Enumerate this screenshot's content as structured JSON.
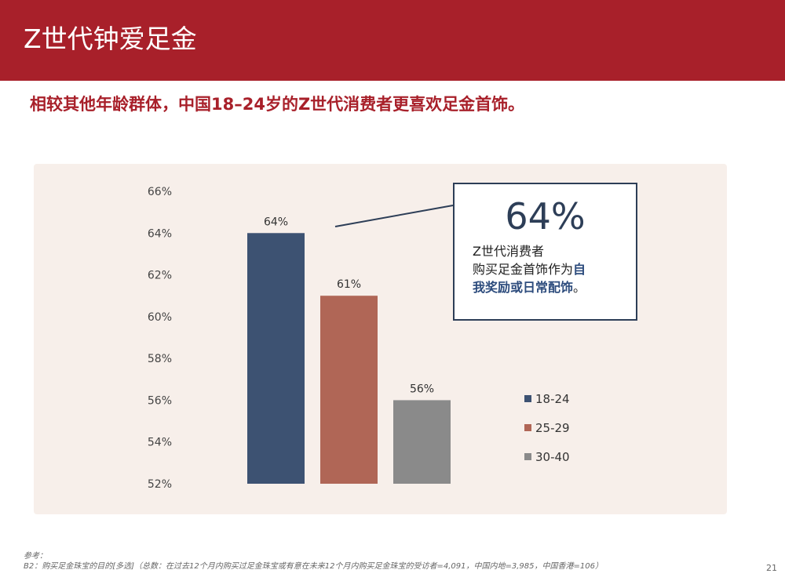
{
  "header": {
    "title": "Z世代钟爱足金"
  },
  "subtitle": "相较其他年龄群体，中国18–24岁的Z世代消费者更喜欢足金首饰。",
  "callout": {
    "big_value": "64%",
    "line1": "Z世代消费者",
    "line2_pre": "购买足金首饰作为",
    "line2_hl": "自",
    "line3_hl": "我奖励或日常配饰",
    "line3_post": "。"
  },
  "footnote": {
    "label": "参考：",
    "text": "B2：购买足金珠宝的目的[多选]（总数：在过去12个月内购买过足金珠宝或有意在未来12个月内购买足金珠宝的受访者=4,091，中国内地=3,985，中国香港=106）"
  },
  "page_number": "21",
  "chart_data": {
    "type": "bar",
    "categories": [
      "18-24",
      "25-29",
      "30-40"
    ],
    "values": [
      64,
      61,
      56
    ],
    "data_labels": [
      "64%",
      "61%",
      "56%"
    ],
    "colors": [
      "#3d5272",
      "#b06656",
      "#8a8a8a"
    ],
    "y_ticks": [
      "66%",
      "64%",
      "62%",
      "60%",
      "58%",
      "56%",
      "54%",
      "52%"
    ],
    "ylim": [
      52,
      66
    ],
    "legend": [
      "18-24",
      "25-29",
      "30-40"
    ],
    "legend_position": "right",
    "grid": false
  }
}
